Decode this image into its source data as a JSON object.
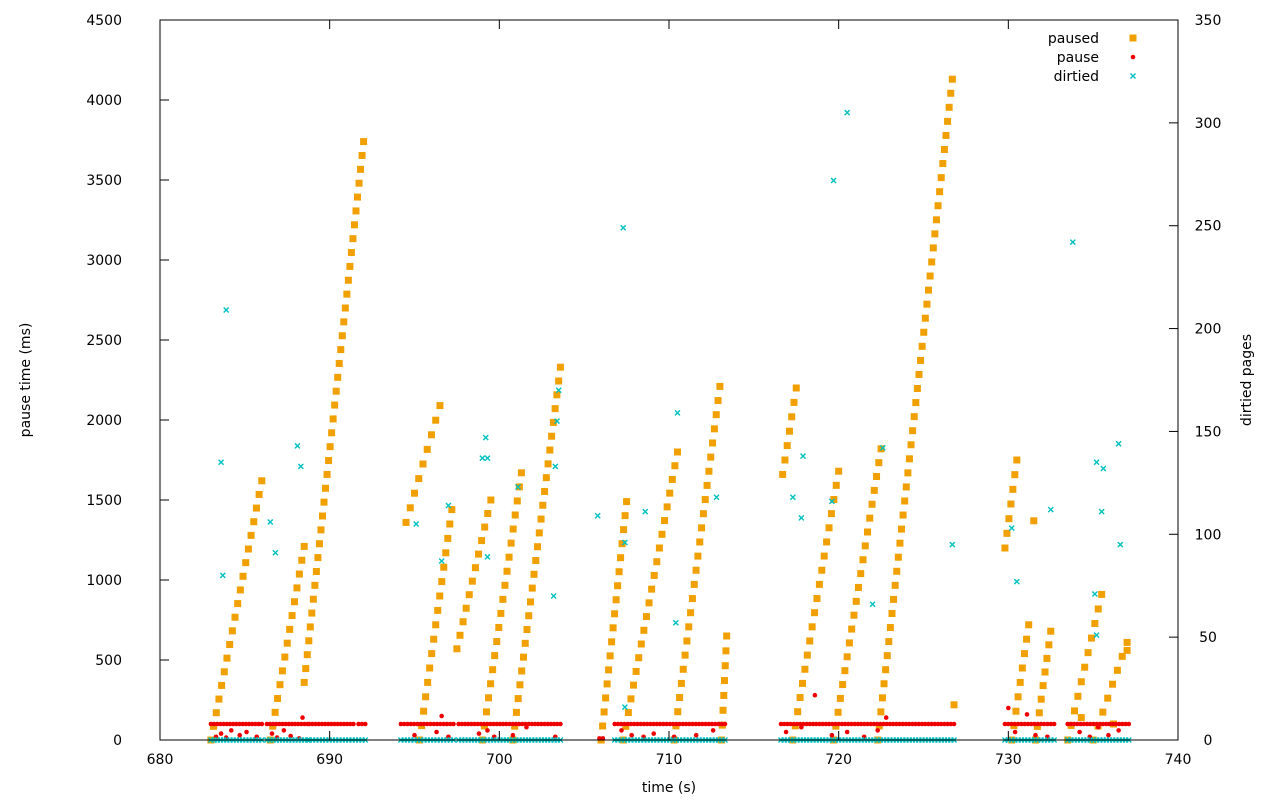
{
  "chart_data": {
    "type": "scatter",
    "xlabel": "time (s)",
    "ylabel": "pause time (ms)",
    "y2label": "dirtied pages",
    "xlim": [
      680,
      740
    ],
    "ylim": [
      0,
      4500
    ],
    "y2lim": [
      0,
      350
    ],
    "xticks": [
      "680",
      "690",
      "700",
      "710",
      "720",
      "730",
      "740"
    ],
    "yticks": [
      "0",
      "500",
      "1000",
      "1500",
      "2000",
      "2500",
      "3000",
      "3500",
      "4000",
      "4500"
    ],
    "y2ticks": [
      "0",
      "50",
      "100",
      "150",
      "200",
      "250",
      "300",
      "350"
    ],
    "grid": false,
    "legend_position": "top-right",
    "series": [
      {
        "name": "paused",
        "axis": "y",
        "marker": "square",
        "color": "#f0a000",
        "ramps": [
          [
            683.0,
            686.0,
            0,
            1620
          ],
          [
            686.5,
            688.5,
            0,
            1210
          ],
          [
            688.5,
            692.0,
            360,
            3740
          ],
          [
            694.5,
            696.5,
            1360,
            2090
          ],
          [
            695.3,
            697.2,
            0,
            1440
          ],
          [
            697.5,
            699.5,
            570,
            1500
          ],
          [
            699.0,
            701.3,
            0,
            1670
          ],
          [
            700.8,
            703.6,
            0,
            2330
          ],
          [
            706.0,
            707.5,
            0,
            1490
          ],
          [
            707.3,
            710.5,
            0,
            1800
          ],
          [
            710.3,
            713.0,
            0,
            2210
          ],
          [
            713.1,
            713.4,
            0,
            650
          ],
          [
            716.7,
            717.5,
            1660,
            2200
          ],
          [
            717.3,
            720.0,
            0,
            1680
          ],
          [
            719.7,
            722.5,
            0,
            1820
          ],
          [
            722.3,
            726.7,
            0,
            4130
          ],
          [
            729.8,
            730.5,
            1200,
            1750
          ],
          [
            730.2,
            731.2,
            0,
            720
          ],
          [
            731.6,
            732.5,
            0,
            680
          ],
          [
            733.5,
            735.5,
            0,
            910
          ],
          [
            735.0,
            737.0,
            0,
            610
          ]
        ],
        "points": [
          [
            726.8,
            220
          ],
          [
            731.5,
            1370
          ],
          [
            734.3,
            140
          ],
          [
            736.2,
            100
          ],
          [
            737.0,
            560
          ],
          [
            706.0,
            0
          ]
        ]
      },
      {
        "name": "pause",
        "axis": "y",
        "marker": "dot",
        "color": "#ee0000",
        "bands": [
          [
            683.0,
            686.0,
            100
          ],
          [
            686.3,
            688.7,
            100
          ],
          [
            688.8,
            691.4,
            100
          ],
          [
            691.7,
            692.1,
            100
          ],
          [
            694.2,
            697.3,
            100
          ],
          [
            697.6,
            703.6,
            100
          ],
          [
            705.9,
            706.1,
            10
          ],
          [
            706.8,
            713.3,
            100
          ],
          [
            716.6,
            726.8,
            100
          ],
          [
            729.8,
            732.7,
            100
          ],
          [
            733.5,
            737.1,
            100
          ]
        ],
        "points": [
          [
            683.3,
            20
          ],
          [
            683.6,
            40
          ],
          [
            683.9,
            15
          ],
          [
            684.2,
            60
          ],
          [
            684.7,
            30
          ],
          [
            685.1,
            50
          ],
          [
            685.7,
            20
          ],
          [
            686.6,
            40
          ],
          [
            686.9,
            15
          ],
          [
            687.3,
            60
          ],
          [
            687.7,
            25
          ],
          [
            688.2,
            10
          ],
          [
            688.4,
            140
          ],
          [
            695.0,
            30
          ],
          [
            696.3,
            50
          ],
          [
            696.6,
            150
          ],
          [
            697.0,
            20
          ],
          [
            698.8,
            40
          ],
          [
            699.3,
            60
          ],
          [
            699.7,
            20
          ],
          [
            700.8,
            30
          ],
          [
            701.6,
            80
          ],
          [
            703.3,
            20
          ],
          [
            707.2,
            60
          ],
          [
            707.8,
            30
          ],
          [
            708.5,
            20
          ],
          [
            709.1,
            40
          ],
          [
            710.3,
            20
          ],
          [
            711.6,
            30
          ],
          [
            712.6,
            60
          ],
          [
            716.9,
            50
          ],
          [
            717.8,
            80
          ],
          [
            718.6,
            280
          ],
          [
            719.6,
            30
          ],
          [
            720.5,
            50
          ],
          [
            721.5,
            20
          ],
          [
            722.3,
            60
          ],
          [
            722.8,
            140
          ],
          [
            730.0,
            200
          ],
          [
            730.4,
            50
          ],
          [
            731.1,
            160
          ],
          [
            731.6,
            30
          ],
          [
            732.3,
            20
          ],
          [
            734.2,
            50
          ],
          [
            734.8,
            20
          ],
          [
            735.3,
            80
          ],
          [
            735.9,
            30
          ],
          [
            736.5,
            60
          ]
        ]
      },
      {
        "name": "dirtied",
        "axis": "y2",
        "marker": "cross",
        "color": "#00c0c0",
        "bands": [
          [
            683.0,
            686.0,
            0
          ],
          [
            686.3,
            688.7,
            0
          ],
          [
            688.8,
            692.1,
            0
          ],
          [
            694.2,
            697.3,
            0
          ],
          [
            697.6,
            703.6,
            0
          ],
          [
            706.8,
            713.3,
            0
          ],
          [
            716.6,
            726.8,
            0
          ],
          [
            729.8,
            732.7,
            0
          ],
          [
            733.5,
            737.1,
            0
          ]
        ],
        "points": [
          [
            683.6,
            135
          ],
          [
            683.7,
            80
          ],
          [
            683.9,
            209
          ],
          [
            686.5,
            106
          ],
          [
            686.8,
            91
          ],
          [
            688.1,
            143
          ],
          [
            688.3,
            133
          ],
          [
            695.1,
            105
          ],
          [
            696.6,
            87
          ],
          [
            697.0,
            114
          ],
          [
            699.0,
            137
          ],
          [
            699.2,
            147
          ],
          [
            699.3,
            89
          ],
          [
            699.3,
            137
          ],
          [
            701.1,
            123
          ],
          [
            703.2,
            70
          ],
          [
            703.3,
            133
          ],
          [
            703.4,
            155
          ],
          [
            703.5,
            170
          ],
          [
            705.8,
            109
          ],
          [
            707.3,
            249
          ],
          [
            707.4,
            96
          ],
          [
            707.4,
            16
          ],
          [
            708.6,
            111
          ],
          [
            710.4,
            57
          ],
          [
            710.5,
            159
          ],
          [
            712.8,
            118
          ],
          [
            717.3,
            118
          ],
          [
            717.8,
            108
          ],
          [
            717.9,
            138
          ],
          [
            719.6,
            116
          ],
          [
            719.7,
            272
          ],
          [
            720.5,
            305
          ],
          [
            722.0,
            66
          ],
          [
            722.6,
            142
          ],
          [
            726.7,
            95
          ],
          [
            730.2,
            103
          ],
          [
            730.5,
            77
          ],
          [
            732.5,
            112
          ],
          [
            733.8,
            242
          ],
          [
            735.1,
            71
          ],
          [
            735.2,
            51
          ],
          [
            735.2,
            135
          ],
          [
            735.5,
            111
          ],
          [
            735.6,
            132
          ],
          [
            736.5,
            144
          ],
          [
            736.6,
            95
          ]
        ]
      }
    ]
  }
}
